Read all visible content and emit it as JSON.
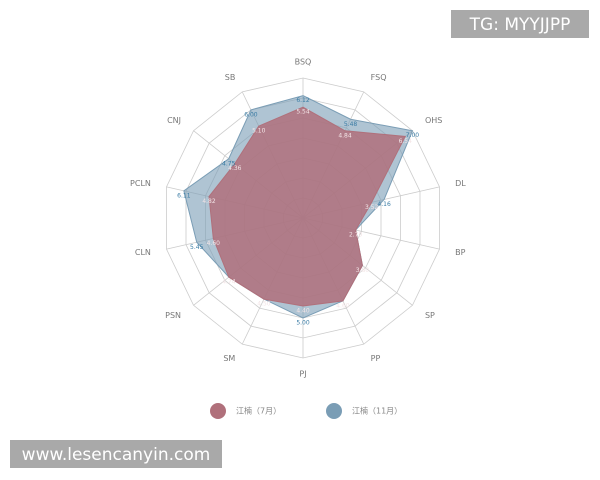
{
  "chart_data": {
    "type": "radar",
    "categories": [
      "BSQ",
      "FSQ",
      "OHS",
      "DL",
      "BP",
      "SP",
      "PP",
      "PJ",
      "SM",
      "PSN",
      "CLN",
      "PCLN",
      "CNJ",
      "SB"
    ],
    "series": [
      {
        "name": "江楠（7月）",
        "color": "#b0707b",
        "values": [
          5.54,
          4.84,
          6.54,
          3.52,
          2.7,
          3.8,
          4.6,
          4.4,
          4.5,
          4.74,
          4.6,
          4.82,
          4.36,
          5.1
        ],
        "value_labels": [
          "5.54",
          "4.84",
          "6.54",
          "3.52",
          "2.70",
          "3.80",
          "4.60",
          "4.40",
          "4.50",
          "4.74",
          "4.60",
          "4.82",
          "4.36",
          "5.10"
        ]
      },
      {
        "name": "江楠（11月）",
        "color": "#7a9db5",
        "values": [
          6.12,
          5.48,
          7,
          4.16,
          2.7,
          3.8,
          4.6,
          5,
          4.5,
          4.74,
          5.45,
          6.11,
          4.75,
          6
        ],
        "value_labels": [
          "6.12",
          "5.48",
          "7.00",
          "4.16",
          null,
          null,
          null,
          "5.00",
          null,
          null,
          "5.45",
          "6.11",
          "4.75",
          "6.00"
        ]
      }
    ],
    "ylim": [
      0,
      7
    ],
    "yticks": [
      1,
      2,
      3,
      4,
      5,
      6,
      7
    ],
    "grid": true
  },
  "overlays": {
    "top_right": "TG: MYYJJPP",
    "bottom_left": "www.lesencanyin.com"
  }
}
